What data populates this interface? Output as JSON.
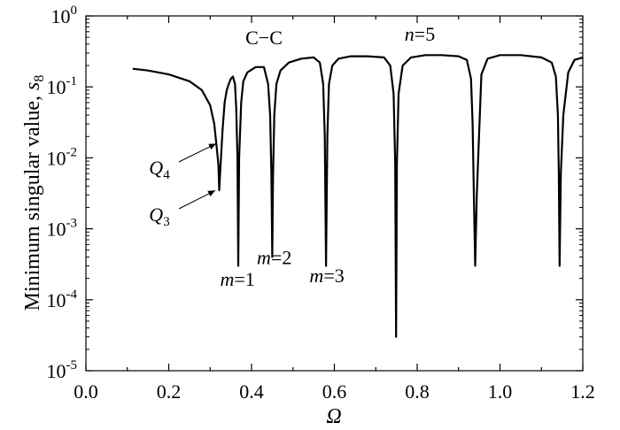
{
  "chart_data": {
    "type": "line",
    "xlabel": "Ω",
    "ylabel": "Minimum singular value, ",
    "ylabel_symbol": "s",
    "ylabel_sub": "8",
    "x_scale": "linear",
    "y_scale": "log",
    "xlim": [
      0.0,
      1.2
    ],
    "ylim_exponents": [
      -5,
      0
    ],
    "x_ticks": [
      "0.0",
      "0.2",
      "0.4",
      "0.6",
      "0.8",
      "1.0",
      "1.2"
    ],
    "y_tick_base": "10",
    "y_tick_exponents": [
      "-5",
      "-4",
      "-3",
      "-2",
      "-1",
      "0"
    ],
    "grid": false,
    "series": [
      {
        "x": [
          0.113,
          0.15,
          0.2,
          0.25,
          0.28,
          0.3,
          0.31,
          0.316,
          0.32,
          0.322,
          0.324,
          0.33,
          0.335,
          0.34,
          0.345,
          0.35,
          0.355,
          0.36,
          0.363,
          0.366,
          0.368,
          0.37,
          0.375,
          0.38,
          0.39,
          0.41,
          0.43,
          0.44,
          0.445,
          0.448,
          0.45,
          0.452,
          0.455,
          0.46,
          0.47,
          0.49,
          0.52,
          0.55,
          0.565,
          0.573,
          0.577,
          0.58,
          0.583,
          0.587,
          0.595,
          0.61,
          0.64,
          0.68,
          0.72,
          0.735,
          0.743,
          0.747,
          0.749,
          0.751,
          0.755,
          0.765,
          0.785,
          0.82,
          0.86,
          0.9,
          0.92,
          0.93,
          0.934,
          0.937,
          0.94,
          0.944,
          0.955,
          0.97,
          1.0,
          1.05,
          1.1,
          1.125,
          1.135,
          1.14,
          1.142,
          1.144,
          1.147,
          1.153,
          1.165,
          1.18,
          1.2
        ],
        "y": [
          0.18,
          0.17,
          0.15,
          0.12,
          0.09,
          0.055,
          0.03,
          0.014,
          0.008,
          0.0035,
          0.006,
          0.025,
          0.06,
          0.09,
          0.11,
          0.13,
          0.14,
          0.11,
          0.05,
          0.01,
          0.0003,
          0.01,
          0.06,
          0.12,
          0.16,
          0.19,
          0.19,
          0.11,
          0.04,
          0.006,
          0.0004,
          0.006,
          0.04,
          0.11,
          0.17,
          0.22,
          0.25,
          0.26,
          0.22,
          0.11,
          0.02,
          0.0003,
          0.02,
          0.11,
          0.2,
          0.25,
          0.27,
          0.27,
          0.26,
          0.2,
          0.08,
          0.008,
          3e-05,
          0.008,
          0.08,
          0.2,
          0.26,
          0.28,
          0.28,
          0.27,
          0.24,
          0.13,
          0.03,
          0.003,
          0.0003,
          0.003,
          0.15,
          0.25,
          0.28,
          0.28,
          0.26,
          0.22,
          0.14,
          0.04,
          0.006,
          0.0003,
          0.006,
          0.04,
          0.16,
          0.24,
          0.26
        ]
      }
    ],
    "annotations": {
      "title_left": "C−C",
      "title_right_var": "n",
      "title_right_val": "=5",
      "mode_labels": [
        {
          "var": "m",
          "val": "=1",
          "x": 0.366,
          "exp": -3.8
        },
        {
          "var": "m",
          "val": "=2",
          "x": 0.455,
          "exp": -3.5
        },
        {
          "var": "m",
          "val": "=3",
          "x": 0.582,
          "exp": -3.75
        }
      ],
      "points": [
        {
          "base": "Q",
          "sub": "4",
          "x": 0.323,
          "exp": -1.8
        },
        {
          "base": "Q",
          "sub": "3",
          "x": 0.321,
          "exp": -2.46
        }
      ]
    }
  }
}
